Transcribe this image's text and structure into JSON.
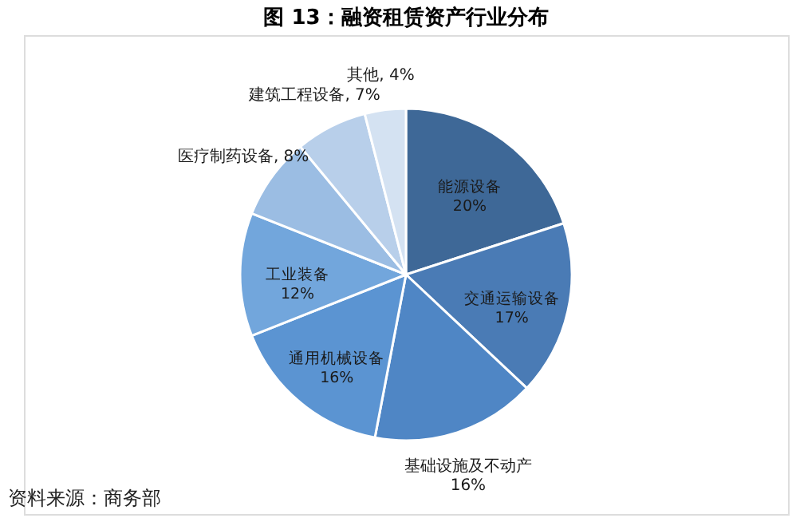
{
  "chart_data": {
    "type": "pie",
    "title": "图 13：融资租赁资产行业分布",
    "categories": [
      "能源设备",
      "交通运输设备",
      "基础设施及不动产",
      "通用机械设备",
      "工业装备",
      "医疗制药设备",
      "建筑工程设备",
      "其他"
    ],
    "values": [
      20,
      17,
      16,
      16,
      12,
      8,
      7,
      4
    ],
    "value_labels": [
      "20%",
      "17%",
      "16%",
      "16%",
      "12%",
      "8%",
      "7%",
      "4%"
    ],
    "colors": [
      "#3e6897",
      "#4a7bb5",
      "#4f86c5",
      "#5b94d2",
      "#72a6dc",
      "#9bbde3",
      "#b8cfea",
      "#d4e2f2"
    ],
    "annotations": [
      "资料来源：商务部"
    ]
  }
}
